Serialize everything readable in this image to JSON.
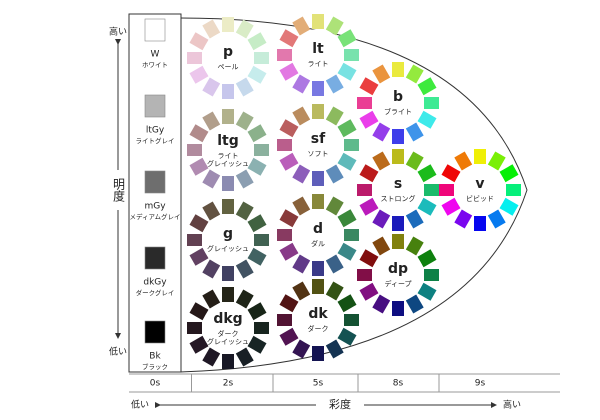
{
  "axis": {
    "lightness": "明度",
    "lightness_high": "高い",
    "lightness_low": "低い",
    "saturation": "彩度",
    "saturation_low": "低い",
    "saturation_high": "高い"
  },
  "grays": [
    {
      "code": "W",
      "name": "ホワイト"
    },
    {
      "code": "ltGy",
      "name": "ライトグレイ"
    },
    {
      "code": "mGy",
      "name": "メディアムグレイ"
    },
    {
      "code": "dkGy",
      "name": "ダークグレイ"
    },
    {
      "code": "Bk",
      "name": "ブラック"
    }
  ],
  "tones": [
    {
      "code": "p",
      "name": [
        "ペール"
      ]
    },
    {
      "code": "ltg",
      "name": [
        "ライト",
        "グレイッシュ"
      ]
    },
    {
      "code": "g",
      "name": [
        "グレイッシュ"
      ]
    },
    {
      "code": "dkg",
      "name": [
        "ダーク",
        "グレイッシュ"
      ]
    },
    {
      "code": "lt",
      "name": [
        "ライト"
      ]
    },
    {
      "code": "sf",
      "name": [
        "ソフト"
      ]
    },
    {
      "code": "d",
      "name": [
        "ダル"
      ]
    },
    {
      "code": "dk",
      "name": [
        "ダーク"
      ]
    },
    {
      "code": "b",
      "name": [
        "ブライト"
      ]
    },
    {
      "code": "s",
      "name": [
        "ストロング"
      ]
    },
    {
      "code": "dp",
      "name": [
        "ディープ"
      ]
    },
    {
      "code": "v",
      "name": [
        "ビビッド"
      ]
    }
  ],
  "columns": [
    "0s",
    "2s",
    "5s",
    "8s",
    "9s"
  ]
}
